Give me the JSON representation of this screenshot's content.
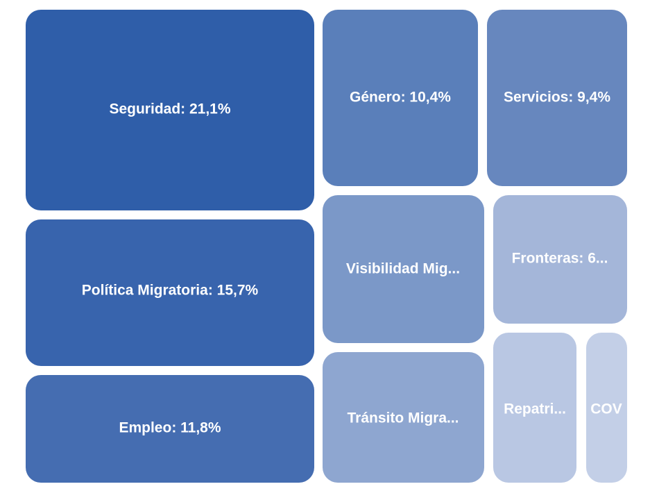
{
  "chart_data": {
    "type": "treemap",
    "items": [
      {
        "name": "Seguridad",
        "value": 21.1,
        "label": "Seguridad: 21,1%",
        "color": "#2f5ea9"
      },
      {
        "name": "Política Migratoria",
        "value": 15.7,
        "label": "Política Migratoria: 15,7%",
        "color": "#3864ad"
      },
      {
        "name": "Empleo",
        "value": 11.8,
        "label": "Empleo: 11,8%",
        "color": "#456db1"
      },
      {
        "name": "Género",
        "value": 10.4,
        "label": "Género: 10,4%",
        "color": "#5a7fba"
      },
      {
        "name": "Servicios",
        "value": 9.4,
        "label": "Servicios: 9,4%",
        "color": "#6787be"
      },
      {
        "name": "Visibilidad Migratoria",
        "label": "Visibilidad Mig...",
        "color": "#7b98c8"
      },
      {
        "name": "Fronteras",
        "label": "Fronteras: 6...",
        "color": "#a4b6d9"
      },
      {
        "name": "Tránsito Migratorio",
        "label": "Tránsito Migra...",
        "color": "#8ea6d0"
      },
      {
        "name": "Repatriación",
        "label": "Repatri...",
        "color": "#b9c7e3"
      },
      {
        "name": "COVID",
        "label": "COV",
        "color": "#c3cfe7"
      }
    ]
  }
}
